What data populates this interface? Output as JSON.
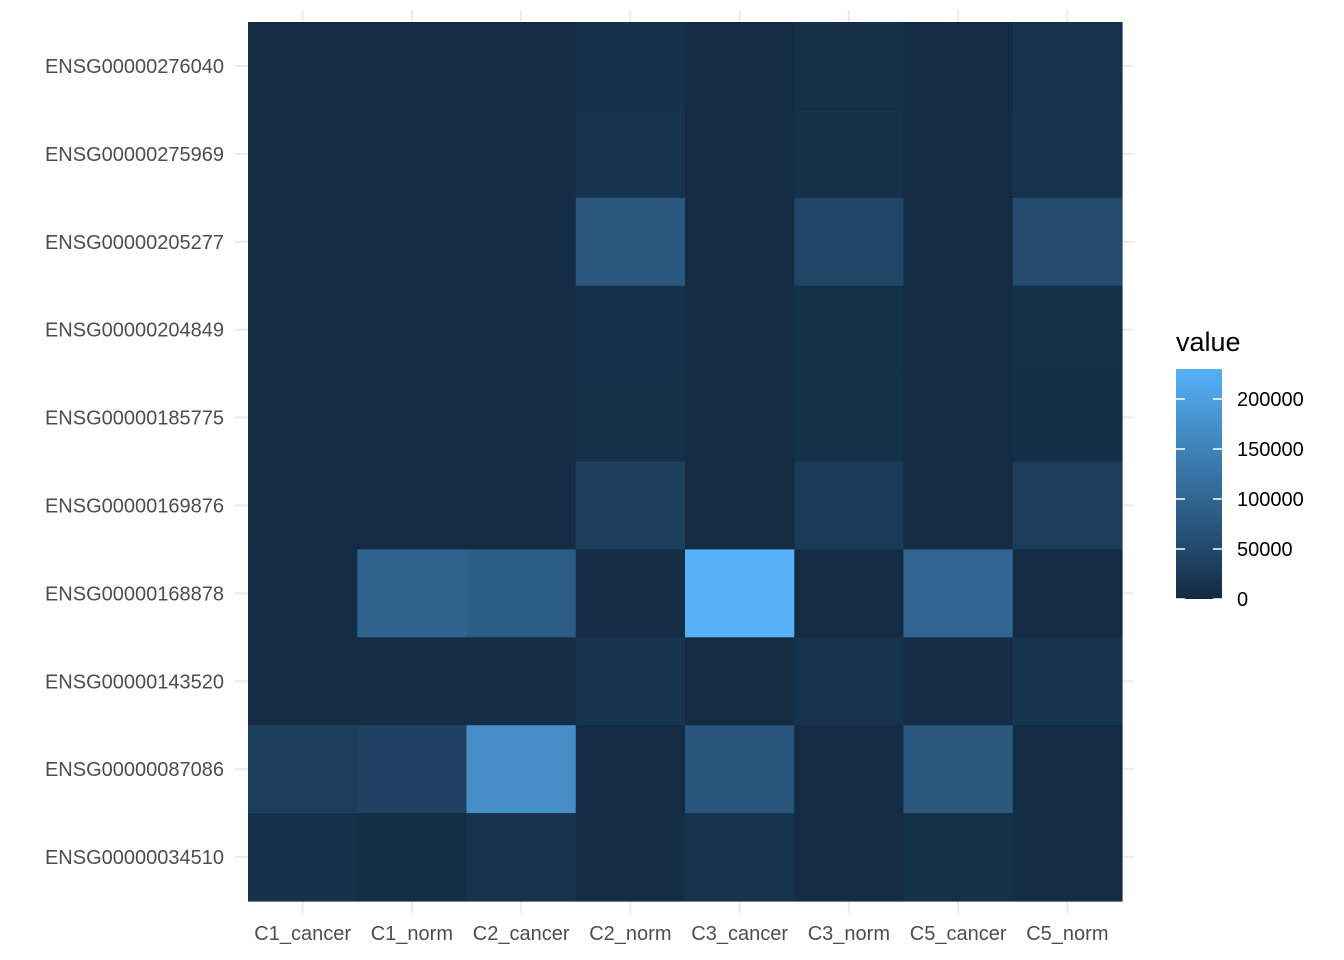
{
  "chart_data": {
    "type": "heatmap",
    "title": "",
    "xlabel": "",
    "ylabel": "",
    "x_categories": [
      "C1_cancer",
      "C1_norm",
      "C2_cancer",
      "C2_norm",
      "C3_cancer",
      "C3_norm",
      "C5_cancer",
      "C5_norm"
    ],
    "y_categories": [
      "ENSG00000276040",
      "ENSG00000275969",
      "ENSG00000205277",
      "ENSG00000204849",
      "ENSG00000185775",
      "ENSG00000169876",
      "ENSG00000168878",
      "ENSG00000143520",
      "ENSG00000087086",
      "ENSG00000034510"
    ],
    "values": [
      [
        500,
        400,
        400,
        10000,
        1000,
        7000,
        500,
        12000
      ],
      [
        500,
        400,
        400,
        15000,
        1000,
        9000,
        500,
        14000
      ],
      [
        500,
        400,
        400,
        75000,
        1000,
        45000,
        500,
        55000
      ],
      [
        500,
        400,
        400,
        10000,
        1000,
        8000,
        500,
        7000
      ],
      [
        500,
        400,
        400,
        9000,
        1000,
        8000,
        500,
        6000
      ],
      [
        500,
        400,
        400,
        35000,
        1000,
        25000,
        500,
        30000
      ],
      [
        2000,
        95000,
        85000,
        2000,
        230000,
        1000,
        100000,
        1000
      ],
      [
        2000,
        2000,
        2000,
        15000,
        1000,
        12000,
        2000,
        15000
      ],
      [
        35000,
        40000,
        170000,
        1000,
        70000,
        1000,
        75000,
        1000
      ],
      [
        10000,
        5000,
        12000,
        3000,
        12000,
        2000,
        8000,
        3000
      ]
    ],
    "color_scale": {
      "low": "#132B43",
      "high": "#56B1F7",
      "min": 0,
      "max": 230000
    },
    "legend": {
      "title": "value",
      "position": "right",
      "ticks": [
        "0",
        "50000",
        "100000",
        "150000",
        "200000"
      ],
      "tick_values": [
        0,
        50000,
        100000,
        150000,
        200000
      ]
    },
    "grid": true,
    "panel_background": "#ffffff",
    "grid_color": "#ebebeb"
  }
}
